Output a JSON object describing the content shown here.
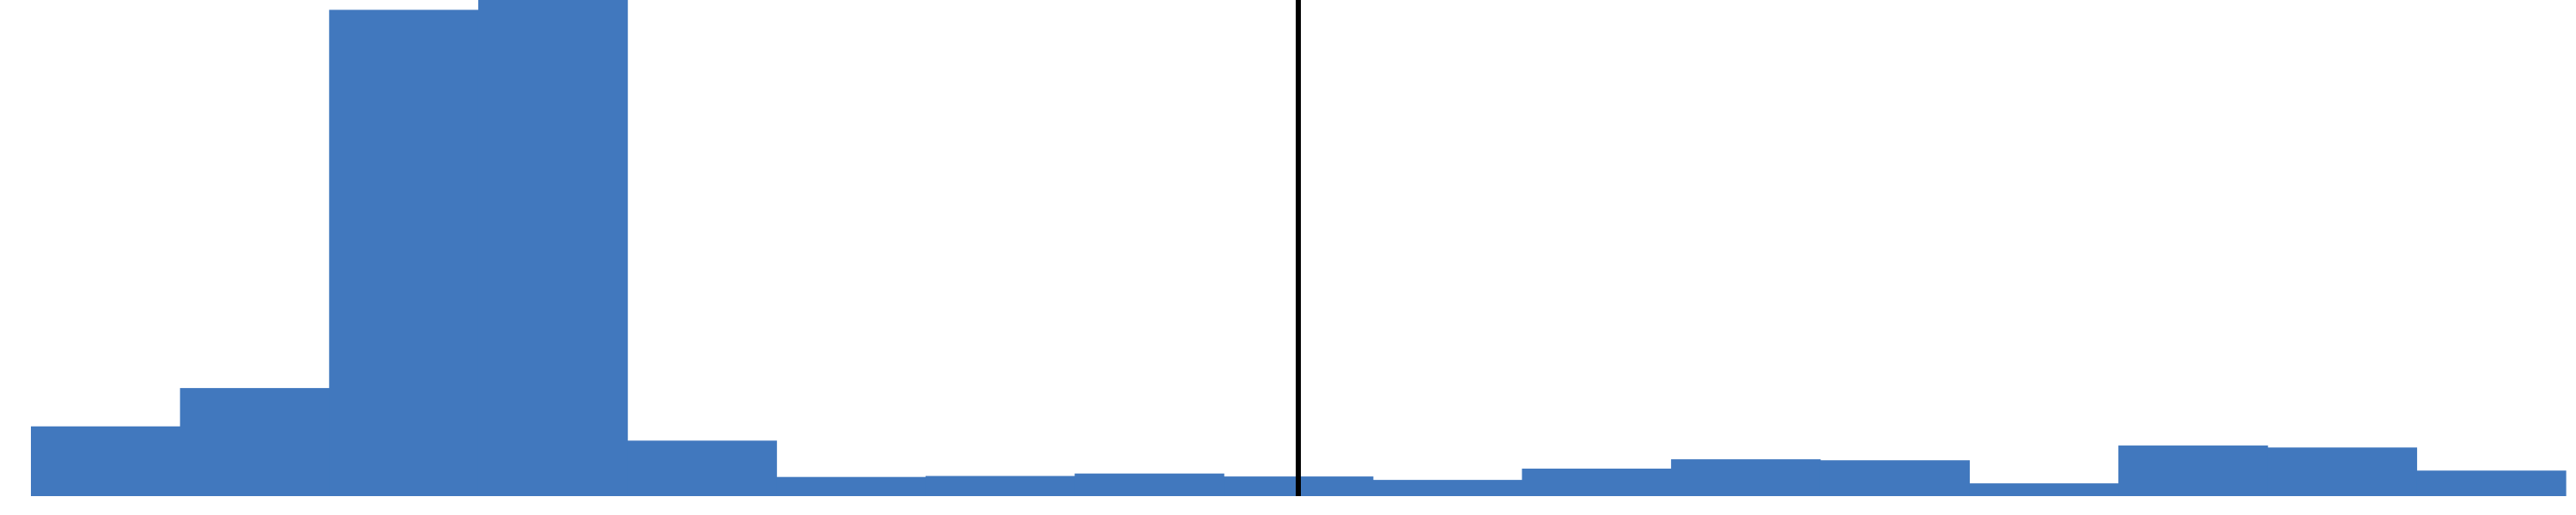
{
  "chart_data": {
    "type": "bar",
    "bar_color": "#4178BE",
    "marker_color": "#000000",
    "values": [
      142,
      220,
      990,
      1010,
      113,
      39,
      41,
      46,
      40,
      33,
      56,
      75,
      73,
      26,
      103,
      99,
      52
    ],
    "ylim": [
      0,
      1010
    ],
    "marker_after_bar": 8.5,
    "grid": false,
    "legend": "none",
    "title": "",
    "xlabel": "",
    "ylabel": ""
  }
}
